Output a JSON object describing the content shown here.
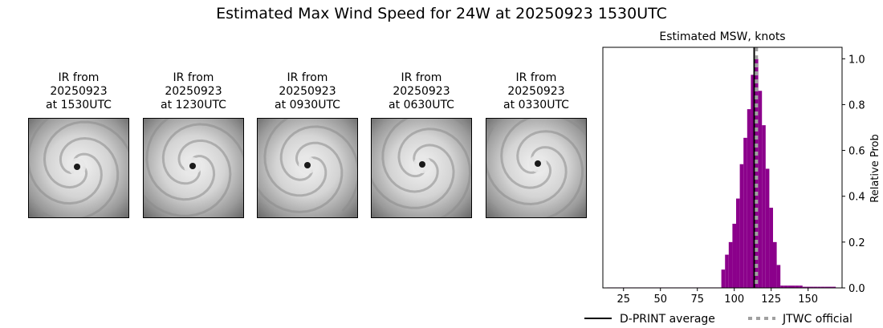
{
  "figure": {
    "title": "Estimated Max Wind Speed for 24W at 20250923 1530UTC"
  },
  "ir_panels": [
    {
      "line1": "IR from",
      "line2": "20250923",
      "line3": "at 1530UTC"
    },
    {
      "line1": "IR from",
      "line2": "20250923",
      "line3": "at 1230UTC"
    },
    {
      "line1": "IR from",
      "line2": "20250923",
      "line3": "at 0930UTC"
    },
    {
      "line1": "IR from",
      "line2": "20250923",
      "line3": "at 0630UTC"
    },
    {
      "line1": "IR from",
      "line2": "20250923",
      "line3": "at 0330UTC"
    }
  ],
  "chart_data": {
    "type": "bar",
    "title": "Estimated MSW, knots",
    "xlabel": "",
    "ylabel": "Relative Prob",
    "xlim": [
      11,
      173
    ],
    "ylim": [
      0,
      1.05
    ],
    "x_ticks": [
      25,
      50,
      75,
      100,
      125,
      150
    ],
    "y_ticks": [
      0.0,
      0.2,
      0.4,
      0.6,
      0.8,
      1.0
    ],
    "bin_width": 2.5,
    "bar_color": "#8b008b",
    "bins": [
      {
        "x": 15,
        "value": 0.002
      },
      {
        "x": 17.5,
        "value": 0.002
      },
      {
        "x": 20,
        "value": 0.002
      },
      {
        "x": 22.5,
        "value": 0.002
      },
      {
        "x": 25,
        "value": 0.002
      },
      {
        "x": 27.5,
        "value": 0.002
      },
      {
        "x": 30,
        "value": 0.002
      },
      {
        "x": 32.5,
        "value": 0.002
      },
      {
        "x": 35,
        "value": 0.002
      },
      {
        "x": 37.5,
        "value": 0.002
      },
      {
        "x": 40,
        "value": 0.002
      },
      {
        "x": 42.5,
        "value": 0.002
      },
      {
        "x": 45,
        "value": 0.002
      },
      {
        "x": 47.5,
        "value": 0.002
      },
      {
        "x": 50,
        "value": 0.002
      },
      {
        "x": 52.5,
        "value": 0.002
      },
      {
        "x": 55,
        "value": 0.002
      },
      {
        "x": 57.5,
        "value": 0.002
      },
      {
        "x": 60,
        "value": 0.002
      },
      {
        "x": 62.5,
        "value": 0.002
      },
      {
        "x": 65,
        "value": 0.002
      },
      {
        "x": 67.5,
        "value": 0.002
      },
      {
        "x": 70,
        "value": 0.002
      },
      {
        "x": 72.5,
        "value": 0.002
      },
      {
        "x": 75,
        "value": 0.002
      },
      {
        "x": 77.5,
        "value": 0.002
      },
      {
        "x": 80,
        "value": 0.002
      },
      {
        "x": 82.5,
        "value": 0.002
      },
      {
        "x": 85,
        "value": 0.002
      },
      {
        "x": 87.5,
        "value": 0.002
      },
      {
        "x": 90,
        "value": 0.002
      },
      {
        "x": 92.5,
        "value": 0.08
      },
      {
        "x": 95,
        "value": 0.145
      },
      {
        "x": 97.5,
        "value": 0.2
      },
      {
        "x": 100,
        "value": 0.28
      },
      {
        "x": 102.5,
        "value": 0.39
      },
      {
        "x": 105,
        "value": 0.54
      },
      {
        "x": 107.5,
        "value": 0.655
      },
      {
        "x": 110,
        "value": 0.78
      },
      {
        "x": 112.5,
        "value": 0.93
      },
      {
        "x": 115,
        "value": 1.0
      },
      {
        "x": 117.5,
        "value": 0.86
      },
      {
        "x": 120,
        "value": 0.71
      },
      {
        "x": 122.5,
        "value": 0.52
      },
      {
        "x": 125,
        "value": 0.35
      },
      {
        "x": 127.5,
        "value": 0.2
      },
      {
        "x": 130,
        "value": 0.1
      },
      {
        "x": 132.5,
        "value": 0.01
      },
      {
        "x": 135,
        "value": 0.01
      },
      {
        "x": 137.5,
        "value": 0.01
      },
      {
        "x": 140,
        "value": 0.01
      },
      {
        "x": 142.5,
        "value": 0.01
      },
      {
        "x": 145,
        "value": 0.01
      },
      {
        "x": 147.5,
        "value": 0.005
      },
      {
        "x": 150,
        "value": 0.005
      },
      {
        "x": 152.5,
        "value": 0.005
      },
      {
        "x": 155,
        "value": 0.005
      },
      {
        "x": 157.5,
        "value": 0.005
      },
      {
        "x": 160,
        "value": 0.005
      },
      {
        "x": 162.5,
        "value": 0.005
      },
      {
        "x": 165,
        "value": 0.005
      },
      {
        "x": 167.5,
        "value": 0.005
      }
    ],
    "lines": [
      {
        "name": "D-PRINT average",
        "x": 113.5,
        "style": "solid",
        "color": "#000000"
      },
      {
        "name": "JTWC official",
        "x": 115,
        "style": "dotted",
        "color": "#a0a0a0"
      }
    ],
    "legend_position": "bottom"
  }
}
